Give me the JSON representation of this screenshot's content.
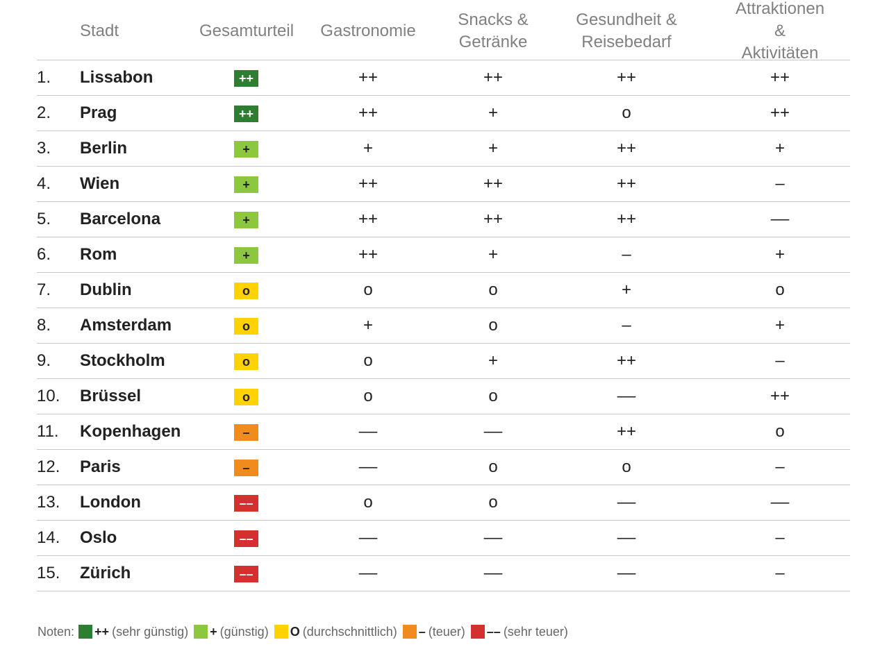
{
  "chart_data": {
    "type": "table",
    "columns": [
      "Stadt",
      "Gesamturteil",
      "Gastronomie",
      "Snacks &\nGetränke",
      "Gesundheit &\nReisebedarf",
      "Attraktionen &\nAktivitäten"
    ],
    "rows": [
      {
        "rank": "1.",
        "city": "Lissabon",
        "overall": "++",
        "scores": [
          "++",
          "++",
          "++",
          "++"
        ]
      },
      {
        "rank": "2.",
        "city": "Prag",
        "overall": "++",
        "scores": [
          "++",
          "+",
          "o",
          "++"
        ]
      },
      {
        "rank": "3.",
        "city": "Berlin",
        "overall": "+",
        "scores": [
          "+",
          "+",
          "++",
          "+"
        ]
      },
      {
        "rank": "4.",
        "city": "Wien",
        "overall": "+",
        "scores": [
          "++",
          "++",
          "++",
          "–"
        ]
      },
      {
        "rank": "5.",
        "city": "Barcelona",
        "overall": "+",
        "scores": [
          "++",
          "++",
          "++",
          "––"
        ]
      },
      {
        "rank": "6.",
        "city": "Rom",
        "overall": "+",
        "scores": [
          "++",
          "+",
          "–",
          "+"
        ]
      },
      {
        "rank": "7.",
        "city": "Dublin",
        "overall": "o",
        "scores": [
          "o",
          "o",
          "+",
          "o"
        ]
      },
      {
        "rank": "8.",
        "city": "Amsterdam",
        "overall": "o",
        "scores": [
          "+",
          "o",
          "–",
          "+"
        ]
      },
      {
        "rank": "9.",
        "city": "Stockholm",
        "overall": "o",
        "scores": [
          "o",
          "+",
          "++",
          "–"
        ]
      },
      {
        "rank": "10.",
        "city": "Brüssel",
        "overall": "o",
        "scores": [
          "o",
          "o",
          "––",
          "++"
        ]
      },
      {
        "rank": "11.",
        "city": "Kopenhagen",
        "overall": "–",
        "scores": [
          "––",
          "––",
          "++",
          "o"
        ]
      },
      {
        "rank": "12.",
        "city": "Paris",
        "overall": "–",
        "scores": [
          "––",
          "o",
          "o",
          "–"
        ]
      },
      {
        "rank": "13.",
        "city": "London",
        "overall": "––",
        "scores": [
          "o",
          "o",
          "––",
          "––"
        ]
      },
      {
        "rank": "14.",
        "city": "Oslo",
        "overall": "––",
        "scores": [
          "––",
          "––",
          "––",
          "–"
        ]
      },
      {
        "rank": "15.",
        "city": "Zürich",
        "overall": "––",
        "scores": [
          "––",
          "––",
          "––",
          "–"
        ]
      }
    ]
  },
  "rating_colors": {
    "++": {
      "bg": "#2e7d32",
      "fg": "#ffffff"
    },
    "+": {
      "bg": "#8dc63f",
      "fg": "#222222"
    },
    "o": {
      "bg": "#ffd200",
      "fg": "#222222"
    },
    "–": {
      "bg": "#f08c1e",
      "fg": "#222222"
    },
    "––": {
      "bg": "#d3302f",
      "fg": "#ffffff"
    }
  },
  "legend": {
    "label": "Noten:",
    "items": [
      {
        "symbol": "++",
        "text": "(sehr günstig)",
        "color": "#2e7d32"
      },
      {
        "symbol": "+",
        "text": "(günstig)",
        "color": "#8dc63f"
      },
      {
        "symbol": "O",
        "text": "(durchschnittlich)",
        "color": "#ffd200"
      },
      {
        "symbol": "–",
        "text": "(teuer)",
        "color": "#f08c1e"
      },
      {
        "symbol": "––",
        "text": "(sehr teuer)",
        "color": "#d3302f"
      }
    ]
  }
}
